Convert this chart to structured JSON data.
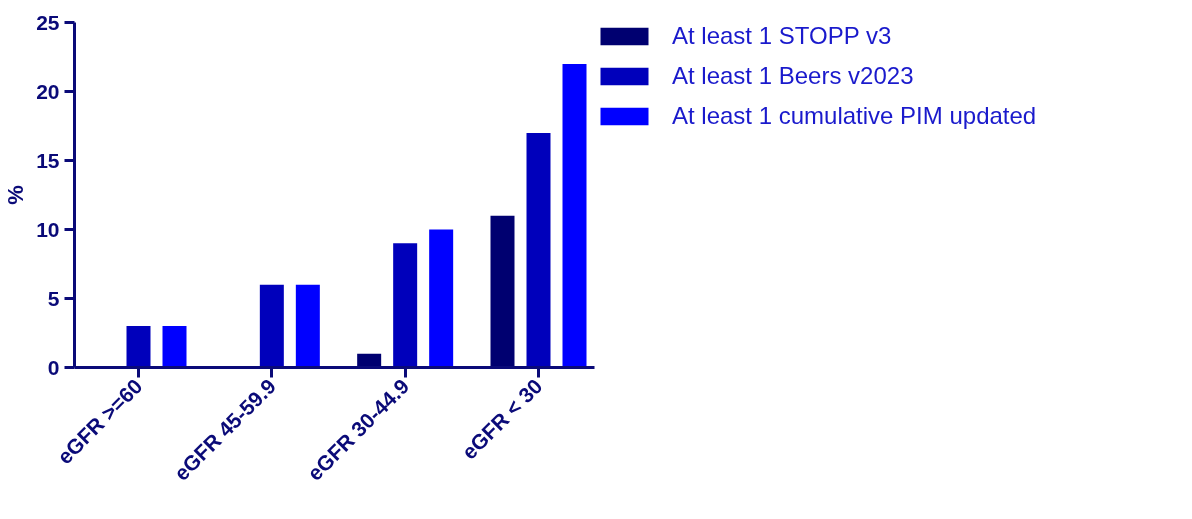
{
  "chart_data": {
    "type": "bar",
    "ylabel": "%",
    "categories": [
      "eGFR >=60",
      "eGFR 45-59.9",
      "eGFR 30-44.9",
      "eGFR < 30"
    ],
    "series": [
      {
        "name": "At least 1 STOPP v3",
        "color": "#000070",
        "values": [
          0,
          0,
          1,
          11
        ]
      },
      {
        "name": "At least 1 Beers v2023",
        "color": "#0000bb",
        "values": [
          3,
          6,
          9,
          17
        ]
      },
      {
        "name": "At least 1 cumulative PIM updated",
        "color": "#0000ff",
        "values": [
          3,
          6,
          10,
          22
        ]
      }
    ],
    "ylim": [
      0,
      25
    ],
    "yticks": [
      0,
      5,
      10,
      15,
      20,
      25
    ],
    "grid": false,
    "legend": "right"
  }
}
